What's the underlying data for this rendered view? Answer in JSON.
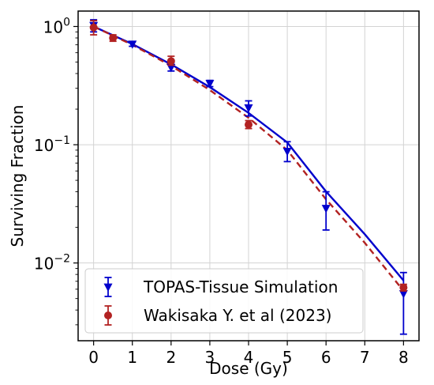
{
  "chart_data": {
    "type": "scatter",
    "xlabel": "Dose (Gy)",
    "ylabel": "Surviving Fraction",
    "xlim": [
      -0.4,
      8.4
    ],
    "ylim": [
      0.0022,
      1.35
    ],
    "yscale": "log",
    "grid": true,
    "legend_position": "bottom-left",
    "x_ticks": [
      "0",
      "1",
      "2",
      "3",
      "4",
      "5",
      "6",
      "7",
      "8"
    ],
    "y_ticks": [
      {
        "value": 1,
        "base": "10",
        "exp": "0"
      },
      {
        "value": 0.1,
        "base": "10",
        "exp": "−1"
      },
      {
        "value": 0.01,
        "base": "10",
        "exp": "−2"
      }
    ],
    "series": [
      {
        "name": "TOPAS-Tissue Simulation",
        "color": "#0000cc",
        "marker": "triangle-down",
        "points": [
          {
            "x": 0,
            "y": 1.02,
            "lo": 0.9,
            "hi": 1.14
          },
          {
            "x": 1,
            "y": 0.71,
            "lo": 0.68,
            "hi": 0.74
          },
          {
            "x": 2,
            "y": 0.45,
            "lo": 0.42,
            "hi": 0.49
          },
          {
            "x": 3,
            "y": 0.33,
            "lo": 0.31,
            "hi": 0.35
          },
          {
            "x": 4,
            "y": 0.205,
            "lo": 0.175,
            "hi": 0.235
          },
          {
            "x": 5,
            "y": 0.088,
            "lo": 0.072,
            "hi": 0.106
          },
          {
            "x": 6,
            "y": 0.029,
            "lo": 0.019,
            "hi": 0.04
          },
          {
            "x": 8,
            "y": 0.0055,
            "lo": 0.0025,
            "hi": 0.0083
          }
        ],
        "fit": [
          {
            "x": 0,
            "y": 1.0
          },
          {
            "x": 1,
            "y": 0.71
          },
          {
            "x": 2,
            "y": 0.478
          },
          {
            "x": 3,
            "y": 0.307
          },
          {
            "x": 4,
            "y": 0.186
          },
          {
            "x": 5,
            "y": 0.1045
          },
          {
            "x": 6,
            "y": 0.0402
          },
          {
            "x": 7,
            "y": 0.0175
          },
          {
            "x": 8,
            "y": 0.0071
          }
        ]
      },
      {
        "name": "Wakisaka Y. et al (2023)",
        "color": "#b22222",
        "marker": "circle",
        "points": [
          {
            "x": 0,
            "y": 0.98,
            "lo": 0.85,
            "hi": 1.12
          },
          {
            "x": 0.5,
            "y": 0.8,
            "lo": 0.75,
            "hi": 0.85
          },
          {
            "x": 2,
            "y": 0.51,
            "lo": 0.47,
            "hi": 0.56
          },
          {
            "x": 4,
            "y": 0.148,
            "lo": 0.137,
            "hi": 0.16
          },
          {
            "x": 8,
            "y": 0.0062,
            "lo": 0.0058,
            "hi": 0.0066
          }
        ],
        "fit": [
          {
            "x": 0,
            "y": 1.0
          },
          {
            "x": 1,
            "y": 0.7
          },
          {
            "x": 2,
            "y": 0.465
          },
          {
            "x": 3,
            "y": 0.29
          },
          {
            "x": 4,
            "y": 0.169
          },
          {
            "x": 5,
            "y": 0.09
          },
          {
            "x": 6,
            "y": 0.0345
          },
          {
            "x": 7,
            "y": 0.0148
          },
          {
            "x": 8,
            "y": 0.0058
          }
        ]
      }
    ]
  }
}
